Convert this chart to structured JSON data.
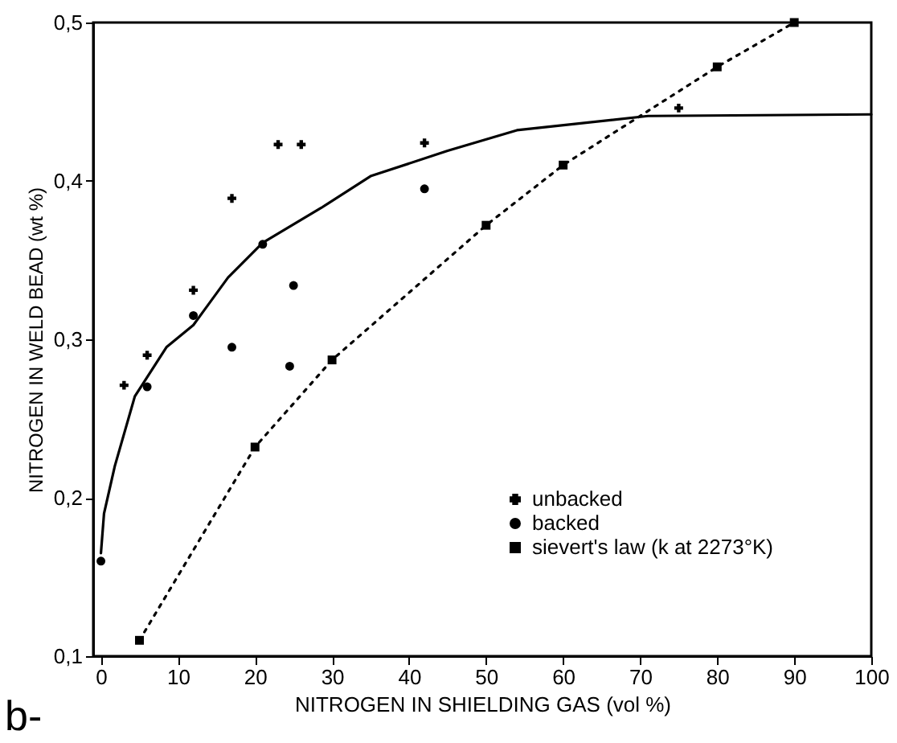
{
  "chart_data": {
    "type": "scatter",
    "xlabel": "NITROGEN IN SHIELDING GAS   (vol %)",
    "ylabel": "NITROGEN IN WELD BEAD  (wt %)",
    "annotations": [
      "b-"
    ],
    "xlim": [
      -1,
      100
    ],
    "xticks": [
      0,
      10,
      20,
      30,
      40,
      50,
      60,
      70,
      80,
      90,
      100
    ],
    "ylim": [
      0.1,
      0.5
    ],
    "yticks": [
      {
        "value": 0.1,
        "label": "0,1"
      },
      {
        "value": 0.2,
        "label": "0,2"
      },
      {
        "value": 0.3,
        "label": "0,3"
      },
      {
        "value": 0.4,
        "label": "0,4"
      },
      {
        "value": 0.5,
        "label": "0,5"
      }
    ],
    "grid": false,
    "legend": "bottom right",
    "series": [
      {
        "name": "unbacked",
        "type": "scatter",
        "marker": "cross",
        "color": "#000000",
        "x": [
          3,
          6,
          12,
          17,
          23,
          26,
          42,
          75
        ],
        "values": [
          0.271,
          0.29,
          0.331,
          0.389,
          0.423,
          0.423,
          0.424,
          0.446
        ]
      },
      {
        "name": "backed",
        "type": "scatter",
        "marker": "circle",
        "color": "#000000",
        "x": [
          0,
          6,
          12,
          17,
          21,
          25,
          24.5,
          42
        ],
        "values": [
          0.16,
          0.27,
          0.315,
          0.295,
          0.36,
          0.334,
          0.283,
          0.395
        ]
      },
      {
        "name": "sievert's law (k at 2273°K)",
        "type": "line",
        "marker": "square",
        "line_style": "dotted",
        "color": "#000000",
        "x": [
          5,
          20,
          30,
          50,
          60,
          80,
          90
        ],
        "values": [
          0.11,
          0.232,
          0.287,
          0.372,
          0.41,
          0.472,
          0.5
        ]
      },
      {
        "type": "line",
        "marker": "none",
        "line_style": "solid",
        "color": "#000000",
        "x": [
          0,
          0.4,
          1.8,
          4.4,
          8.5,
          12,
          16.5,
          21,
          28.6,
          35,
          45,
          54,
          71,
          100
        ],
        "values": [
          0.165,
          0.19,
          0.22,
          0.264,
          0.295,
          0.309,
          0.339,
          0.361,
          0.383,
          0.403,
          0.419,
          0.432,
          0.441,
          0.442
        ]
      }
    ]
  }
}
